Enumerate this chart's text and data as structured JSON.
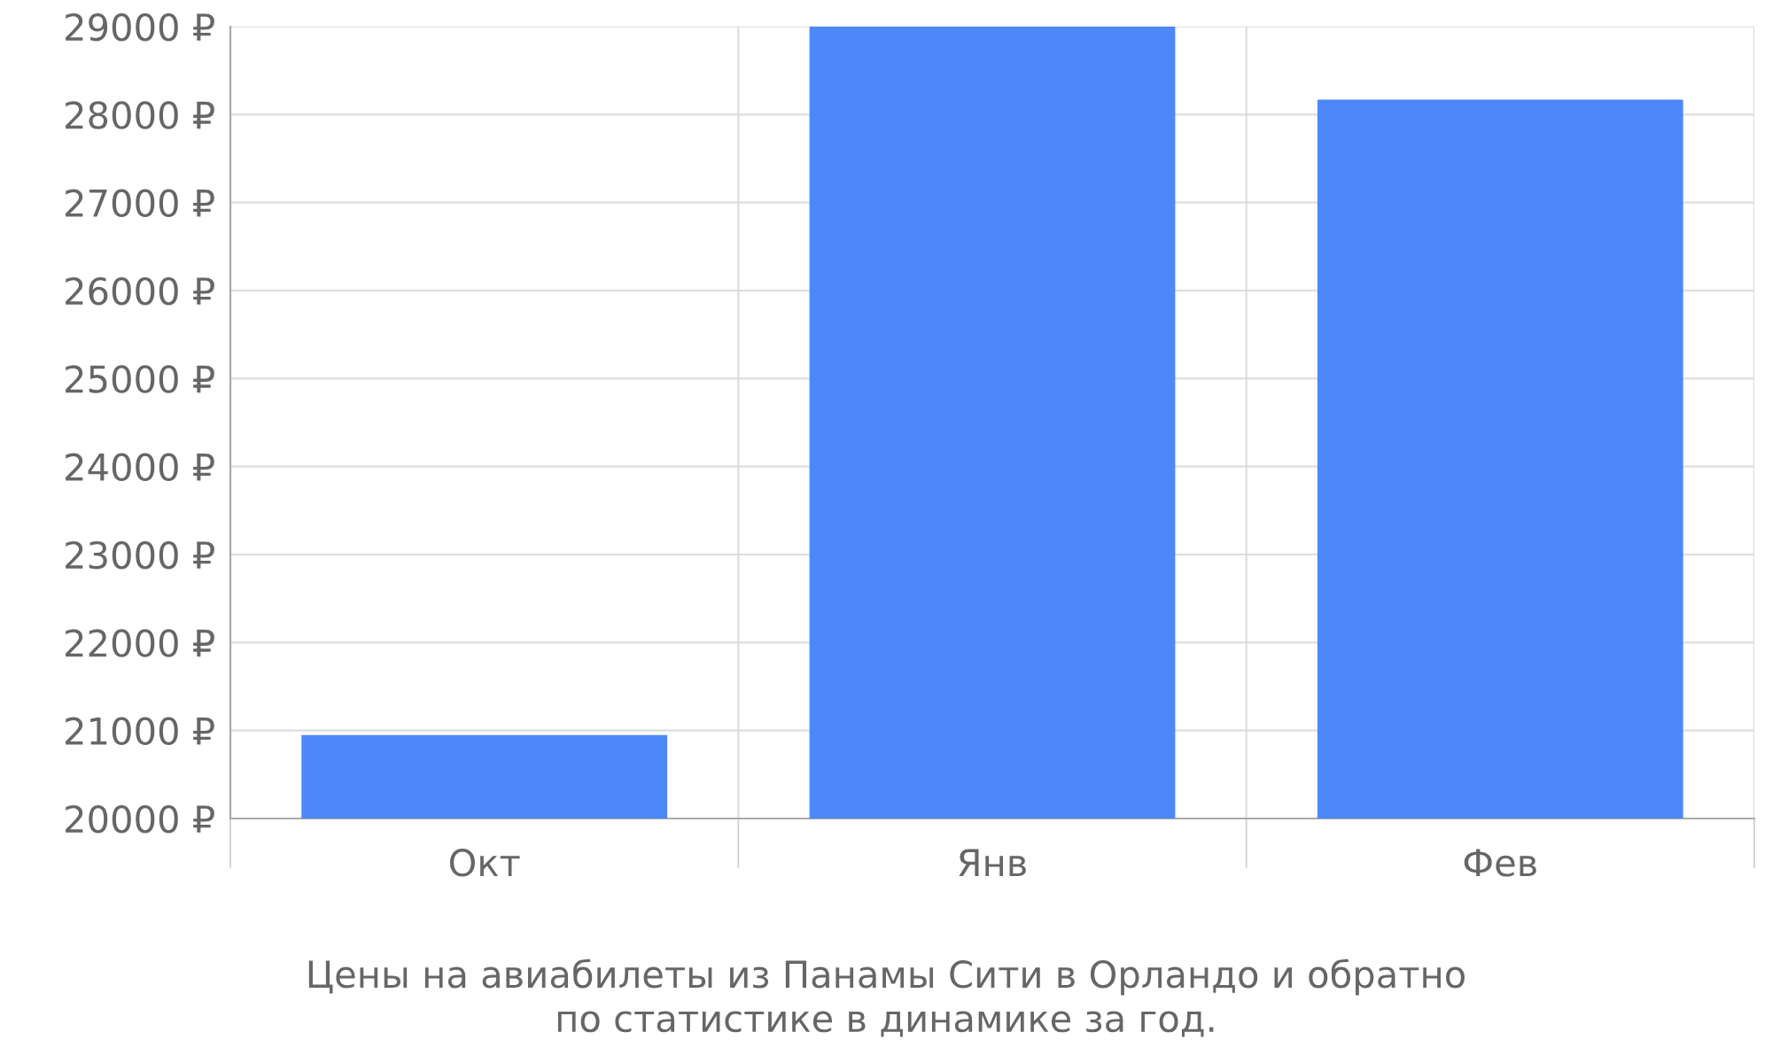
{
  "chart_data": {
    "type": "bar",
    "categories": [
      "Окт",
      "Янв",
      "Фев"
    ],
    "values": [
      20950,
      29000,
      28170
    ],
    "color": "#4d88fa",
    "ylim": [
      20000,
      29000
    ],
    "yticks": [
      {
        "value": 20000,
        "label": "20000 ₽"
      },
      {
        "value": 21000,
        "label": "21000 ₽"
      },
      {
        "value": 22000,
        "label": "22000 ₽"
      },
      {
        "value": 23000,
        "label": "23000 ₽"
      },
      {
        "value": 24000,
        "label": "24000 ₽"
      },
      {
        "value": 25000,
        "label": "25000 ₽"
      },
      {
        "value": 26000,
        "label": "26000 ₽"
      },
      {
        "value": 27000,
        "label": "27000 ₽"
      },
      {
        "value": 28000,
        "label": "28000 ₽"
      },
      {
        "value": 29000,
        "label": "29000 ₽"
      }
    ],
    "grid": true,
    "annotations": [
      "Цены на авиабилеты из Панамы Сити в Орландо и обратно\nпо статистике в динамике за год."
    ]
  }
}
